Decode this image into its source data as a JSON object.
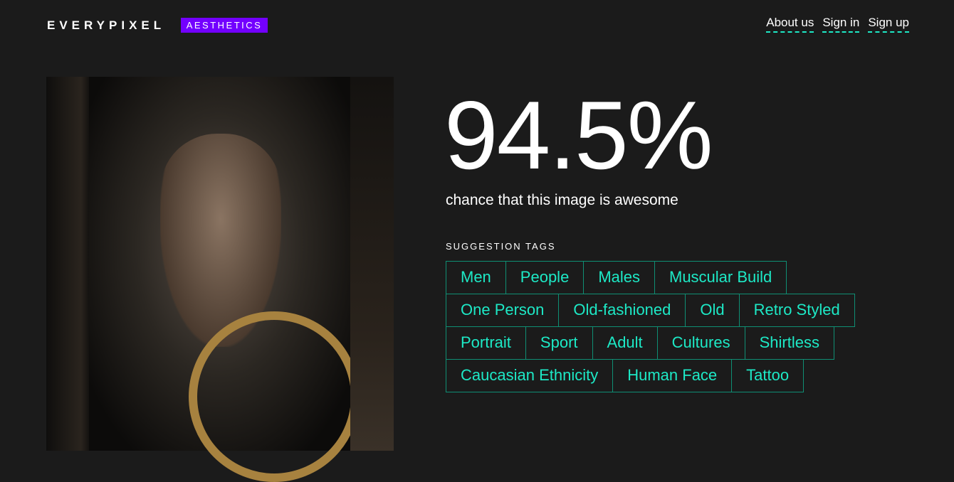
{
  "header": {
    "logo": "EVERYPIXEL",
    "badge": "AESTHETICS",
    "nav": [
      "About us",
      "Sign in",
      "Sign up"
    ],
    "accent": "#1de9c6",
    "badge_color": "#7300ff"
  },
  "result": {
    "score": "94.5%",
    "caption": "chance that this image is awesome"
  },
  "tags": {
    "title": "SUGGESTION TAGS",
    "rows": [
      [
        "Men",
        "People",
        "Males",
        "Muscular Build"
      ],
      [
        "One Person",
        "Old-fashioned",
        "Old",
        "Retro Styled"
      ],
      [
        "Portrait",
        "Sport",
        "Adult",
        "Cultures",
        "Shirtless"
      ],
      [
        "Caucasian Ethnicity",
        "Human Face",
        "Tattoo"
      ]
    ]
  }
}
